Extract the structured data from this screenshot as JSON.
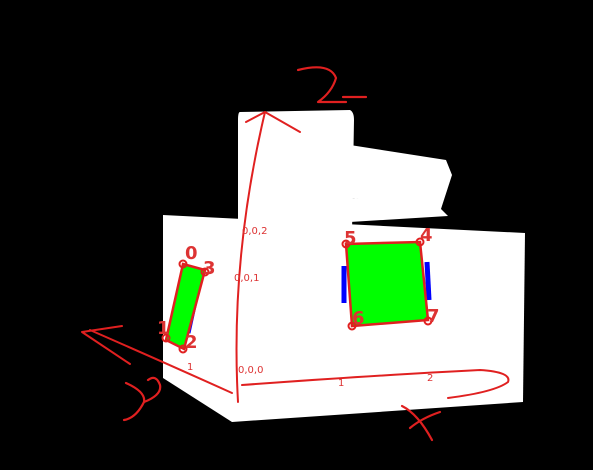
{
  "colors": {
    "background": "#000000",
    "solid": "#ffffff",
    "annotation": "#e02020",
    "face_fill": "#00ff00",
    "face_edge": "#0000ff"
  },
  "axes": {
    "z_label": "Z",
    "y_label": "Y",
    "x_label": "X"
  },
  "ticks": {
    "origin": "0,0,0",
    "z1": "0,0,1",
    "z2": "0,0,2",
    "y1": "1",
    "x1": "1",
    "x2": "2"
  },
  "corners": [
    "0",
    "1",
    "2",
    "3",
    "4",
    "5",
    "6",
    "7"
  ],
  "icons": [
    "axis-arrow-icon"
  ]
}
